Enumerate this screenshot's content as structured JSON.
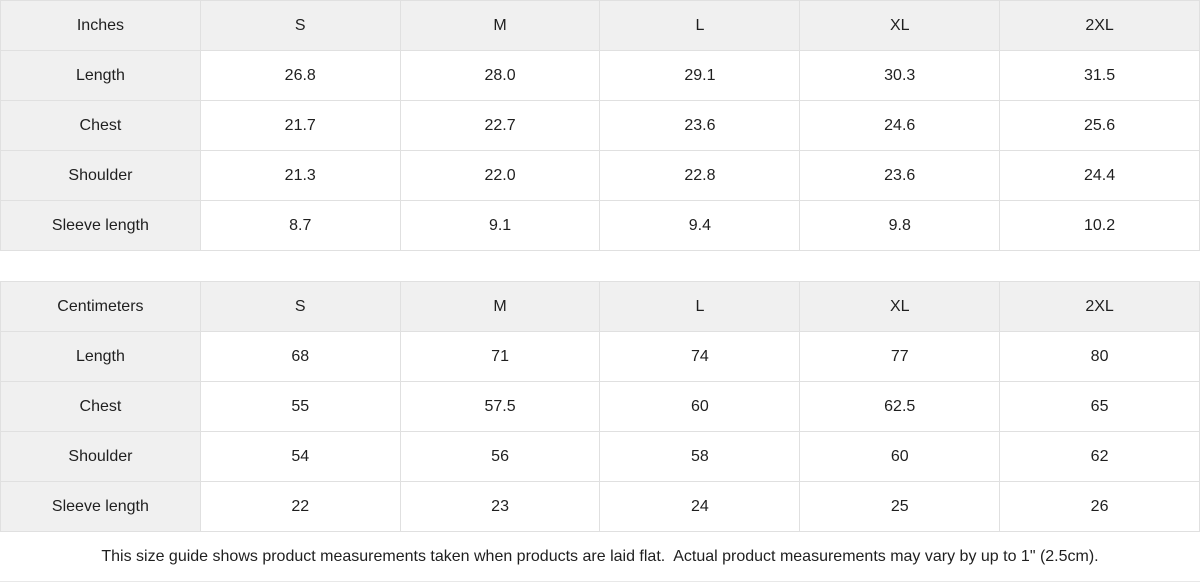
{
  "size_guide": {
    "tables": [
      {
        "unit_label": "Inches",
        "size_headers": [
          "S",
          "M",
          "L",
          "XL",
          "2XL"
        ],
        "rows": [
          {
            "label": "Length",
            "values": [
              "26.8",
              "28.0",
              "29.1",
              "30.3",
              "31.5"
            ]
          },
          {
            "label": "Chest",
            "values": [
              "21.7",
              "22.7",
              "23.6",
              "24.6",
              "25.6"
            ]
          },
          {
            "label": "Shoulder",
            "values": [
              "21.3",
              "22.0",
              "22.8",
              "23.6",
              "24.4"
            ]
          },
          {
            "label": "Sleeve length",
            "values": [
              "8.7",
              "9.1",
              "9.4",
              "9.8",
              "10.2"
            ]
          }
        ]
      },
      {
        "unit_label": "Centimeters",
        "size_headers": [
          "S",
          "M",
          "L",
          "XL",
          "2XL"
        ],
        "rows": [
          {
            "label": "Length",
            "values": [
              "68",
              "71",
              "74",
              "77",
              "80"
            ]
          },
          {
            "label": "Chest",
            "values": [
              "55",
              "57.5",
              "60",
              "62.5",
              "65"
            ]
          },
          {
            "label": "Shoulder",
            "values": [
              "54",
              "56",
              "58",
              "60",
              "62"
            ]
          },
          {
            "label": "Sleeve length",
            "values": [
              "22",
              "23",
              "24",
              "25",
              "26"
            ]
          }
        ]
      }
    ],
    "footer_note": "This size guide shows product measurements taken when products are laid flat.  Actual product measurements may vary by up to 1\" (2.5cm)."
  },
  "colors": {
    "header_background": "#f0f0f0",
    "border": "#e0e0e0",
    "text": "#1f1f1f",
    "background": "#ffffff"
  }
}
